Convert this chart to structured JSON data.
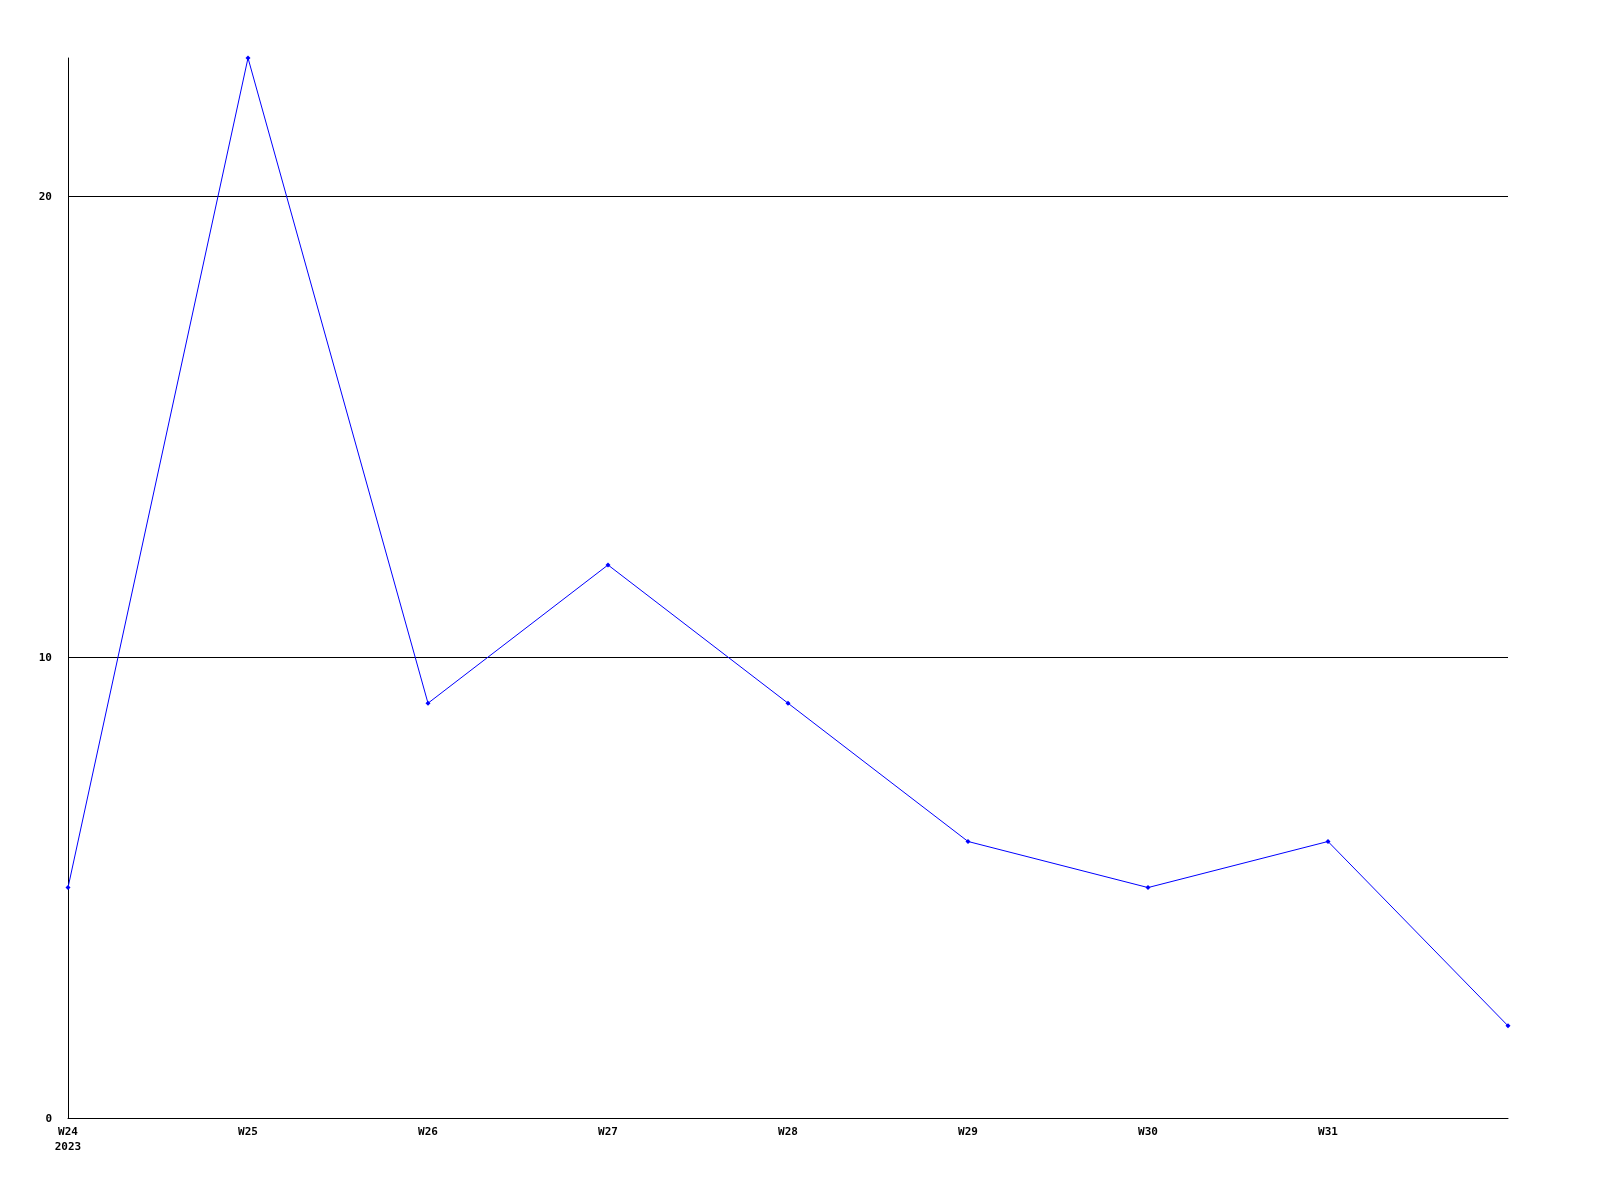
{
  "chart_data": {
    "type": "line",
    "categories": [
      "W24\n2023",
      "W25",
      "W26",
      "W27",
      "W28",
      "W29",
      "W30",
      "W31",
      null
    ],
    "series": [
      {
        "color": "#0000ff",
        "values": [
          5,
          23,
          9,
          12,
          9,
          6,
          5,
          6,
          2
        ]
      }
    ],
    "ylim": [
      0,
      23
    ],
    "yticks": [
      0,
      10,
      20
    ],
    "grid": "y",
    "marker": "diamond"
  }
}
